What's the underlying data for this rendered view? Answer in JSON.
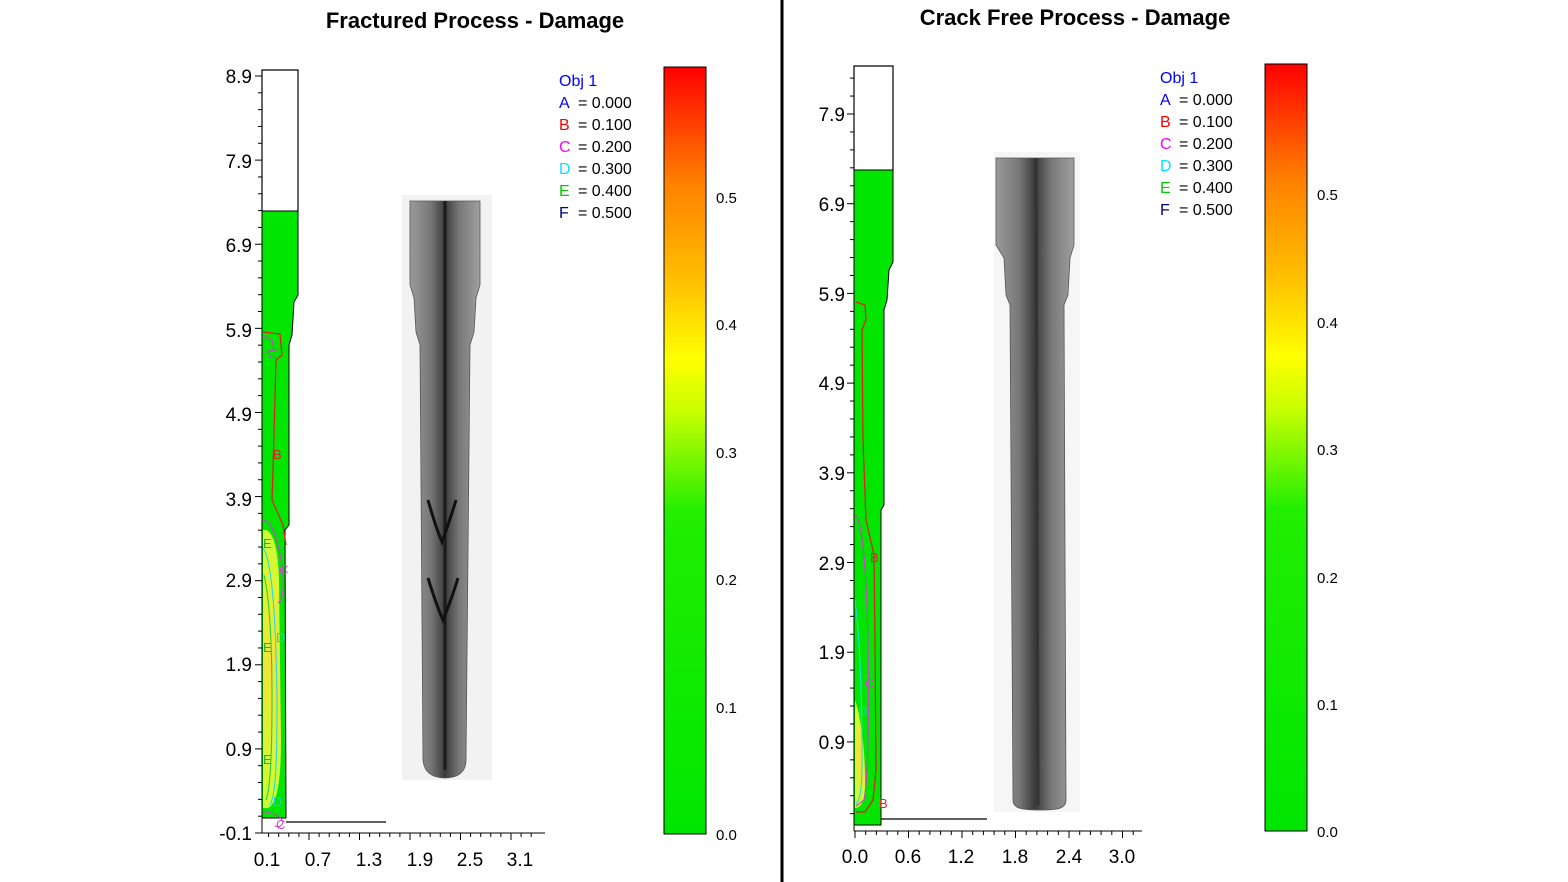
{
  "divider_color": "#000000",
  "colorbar_colors": [
    "#00e600",
    "#22ee00",
    "#c8ff00",
    "#ffff00",
    "#ffc000",
    "#ff8000",
    "#ff0000"
  ],
  "panels": [
    {
      "title": "Fractured Process - Damage",
      "y_ticks": [
        "8.9",
        "7.9",
        "6.9",
        "5.9",
        "4.9",
        "3.9",
        "2.9",
        "1.9",
        "0.9",
        "-0.1"
      ],
      "x_ticks": [
        "0.1",
        "0.7",
        "1.3",
        "1.9",
        "2.5",
        "3.1"
      ],
      "legend_title": "Obj 1",
      "legend": [
        {
          "key": "A",
          "value": "= 0.000",
          "color": "#0000ff"
        },
        {
          "key": "B",
          "value": "= 0.100",
          "color": "#ff0000"
        },
        {
          "key": "C",
          "value": "= 0.200",
          "color": "#ff00ff"
        },
        {
          "key": "D",
          "value": "= 0.300",
          "color": "#00e5ff"
        },
        {
          "key": "E",
          "value": "= 0.400",
          "color": "#00cc00"
        },
        {
          "key": "F",
          "value": "= 0.500",
          "color": "#000080"
        }
      ],
      "colorbar_ticks": [
        "0.5",
        "0.4",
        "0.3",
        "0.2",
        "0.1",
        "0.0"
      ],
      "contour_labels": [
        "C",
        "B",
        "E",
        "C",
        "E",
        "D",
        "E",
        "D",
        "C"
      ],
      "photo": "fractured-specimen-photo"
    },
    {
      "title": "Crack Free Process - Damage",
      "y_ticks": [
        "7.9",
        "6.9",
        "5.9",
        "4.9",
        "3.9",
        "2.9",
        "1.9",
        "0.9"
      ],
      "x_ticks": [
        "0.0",
        "0.6",
        "1.2",
        "1.8",
        "2.4",
        "3.0"
      ],
      "legend_title": "Obj 1",
      "legend": [
        {
          "key": "A",
          "value": "= 0.000",
          "color": "#0000ff"
        },
        {
          "key": "B",
          "value": "= 0.100",
          "color": "#ff0000"
        },
        {
          "key": "C",
          "value": "= 0.200",
          "color": "#ff00ff"
        },
        {
          "key": "D",
          "value": "= 0.300",
          "color": "#00e5ff"
        },
        {
          "key": "E",
          "value": "= 0.400",
          "color": "#00cc00"
        },
        {
          "key": "F",
          "value": "= 0.500",
          "color": "#000080"
        }
      ],
      "colorbar_ticks": [
        "0.5",
        "0.4",
        "0.3",
        "0.2",
        "0.1",
        "0.0"
      ],
      "contour_labels": [
        "B",
        "C",
        "D",
        "B"
      ],
      "photo": "crack-free-specimen-photo"
    }
  ]
}
